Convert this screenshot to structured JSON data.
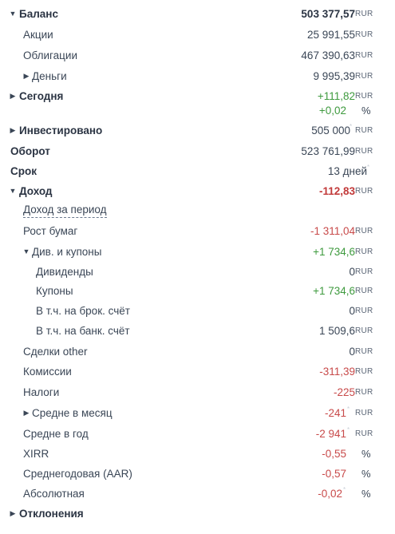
{
  "currency": "RUR",
  "percent_sign": "%",
  "rows": [
    {
      "label": "Баланс",
      "value": "503 377,57",
      "unit": "RUR"
    },
    {
      "label": "Акции",
      "value": "25 991,55",
      "unit": "RUR"
    },
    {
      "label": "Облигации",
      "value": "467 390,63",
      "unit": "RUR"
    },
    {
      "label": "Деньги",
      "value": "9 995,39",
      "unit": "RUR"
    },
    {
      "label": "Сегодня",
      "value": "+111,82",
      "unit": "RUR",
      "value2": "+0,02",
      "unit2": "%"
    },
    {
      "label": "Инвестировано",
      "value": "505 000",
      "unit": "RUR"
    },
    {
      "label": "Оборот",
      "value": "523 761,99",
      "unit": "RUR"
    },
    {
      "label": "Срок",
      "value": "13 дней"
    },
    {
      "label": "Доход",
      "value": "-112,83",
      "unit": "RUR"
    },
    {
      "label": "Доход за период"
    },
    {
      "label": "Рост бумаг",
      "value": "-1 311,04",
      "unit": "RUR"
    },
    {
      "label": "Див. и купоны",
      "value": "+1 734,6",
      "unit": "RUR"
    },
    {
      "label": "Дивиденды",
      "value": "0",
      "unit": "RUR"
    },
    {
      "label": "Купоны",
      "value": "+1 734,6",
      "unit": "RUR"
    },
    {
      "label": "В т.ч. на брок. счёт",
      "value": "0",
      "unit": "RUR"
    },
    {
      "label": "В т.ч. на банк. счёт",
      "value": "1 509,6",
      "unit": "RUR"
    },
    {
      "label": "Сделки other",
      "value": "0",
      "unit": "RUR"
    },
    {
      "label": "Комиссии",
      "value": "-311,39",
      "unit": "RUR"
    },
    {
      "label": "Налоги",
      "value": "-225",
      "unit": "RUR"
    },
    {
      "label": "Средне в месяц",
      "value": "-241",
      "unit": "RUR"
    },
    {
      "label": "Средне в год",
      "value": "-2 941",
      "unit": "RUR"
    },
    {
      "label": "XIRR",
      "value": "-0,55",
      "unit": "%"
    },
    {
      "label": "Среднегодовая (AAR)",
      "value": "-0,57",
      "unit": "%"
    },
    {
      "label": "Абсолютная",
      "value": "-0,02",
      "unit": "%"
    },
    {
      "label": "Отклонения"
    }
  ]
}
